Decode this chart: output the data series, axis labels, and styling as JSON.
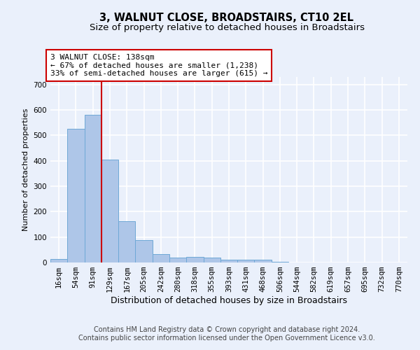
{
  "title": "3, WALNUT CLOSE, BROADSTAIRS, CT10 2EL",
  "subtitle": "Size of property relative to detached houses in Broadstairs",
  "xlabel": "Distribution of detached houses by size in Broadstairs",
  "ylabel": "Number of detached properties",
  "bar_labels": [
    "16sqm",
    "54sqm",
    "91sqm",
    "129sqm",
    "167sqm",
    "205sqm",
    "242sqm",
    "280sqm",
    "318sqm",
    "355sqm",
    "393sqm",
    "431sqm",
    "468sqm",
    "506sqm",
    "544sqm",
    "582sqm",
    "619sqm",
    "657sqm",
    "695sqm",
    "732sqm",
    "770sqm"
  ],
  "bar_heights": [
    15,
    525,
    580,
    405,
    163,
    88,
    33,
    20,
    21,
    20,
    10,
    11,
    11,
    4,
    0,
    0,
    0,
    0,
    0,
    0,
    0
  ],
  "bar_color": "#aec6e8",
  "bar_edgecolor": "#6fa8d6",
  "vline_x_index": 3,
  "vline_color": "#cc0000",
  "ylim": [
    0,
    730
  ],
  "yticks": [
    0,
    100,
    200,
    300,
    400,
    500,
    600,
    700
  ],
  "annotation_title": "3 WALNUT CLOSE: 138sqm",
  "annotation_line1": "← 67% of detached houses are smaller (1,238)",
  "annotation_line2": "33% of semi-detached houses are larger (615) →",
  "annotation_box_color": "#ffffff",
  "annotation_box_edgecolor": "#cc0000",
  "footer_line1": "Contains HM Land Registry data © Crown copyright and database right 2024.",
  "footer_line2": "Contains public sector information licensed under the Open Government Licence v3.0.",
  "background_color": "#eaf0fb",
  "plot_bg_color": "#eaf0fb",
  "grid_color": "#ffffff",
  "title_fontsize": 10.5,
  "subtitle_fontsize": 9.5,
  "xlabel_fontsize": 9,
  "ylabel_fontsize": 8,
  "tick_fontsize": 7.5,
  "annotation_fontsize": 8,
  "footer_fontsize": 7
}
